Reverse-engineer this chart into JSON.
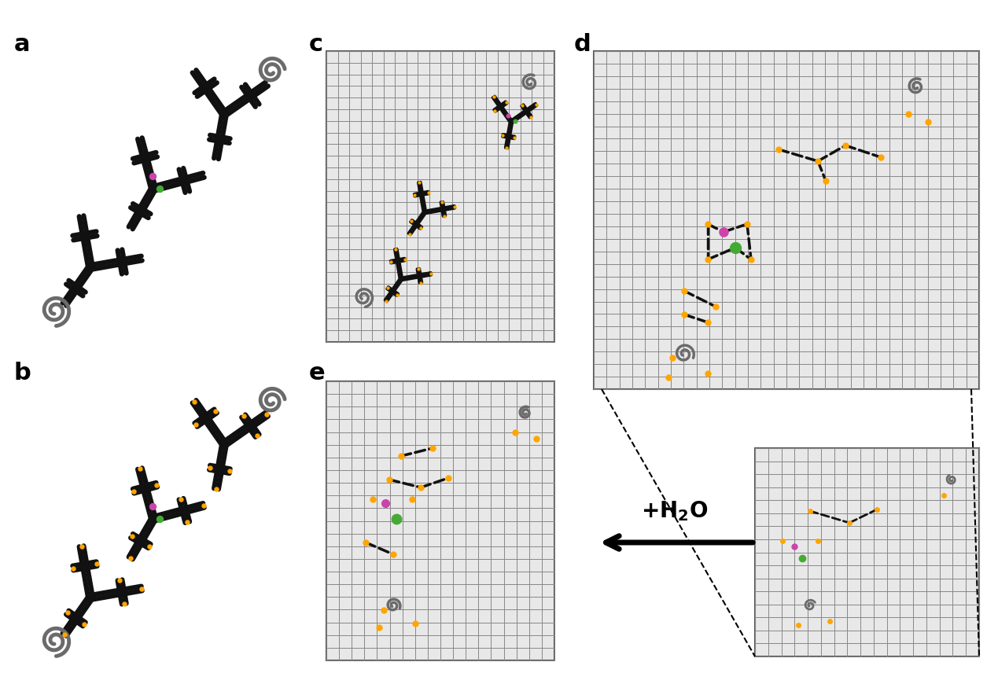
{
  "background_color": "#ffffff",
  "antibody_color": "#111111",
  "spiral_color": "#6b6b6b",
  "dot_orange": "#FFA500",
  "dot_magenta": "#CC44AA",
  "dot_green": "#44AA33",
  "grid_color": "#888888",
  "grid_bg": "#e8e8e8",
  "dashed_color": "#111111",
  "panel_label_size": 22,
  "lw_antibody": 4.5,
  "lw_spiral": 3.5,
  "panel_a_label": "a",
  "panel_b_label": "b",
  "panel_c_label": "c",
  "panel_d_label": "d",
  "panel_e_label": "e"
}
